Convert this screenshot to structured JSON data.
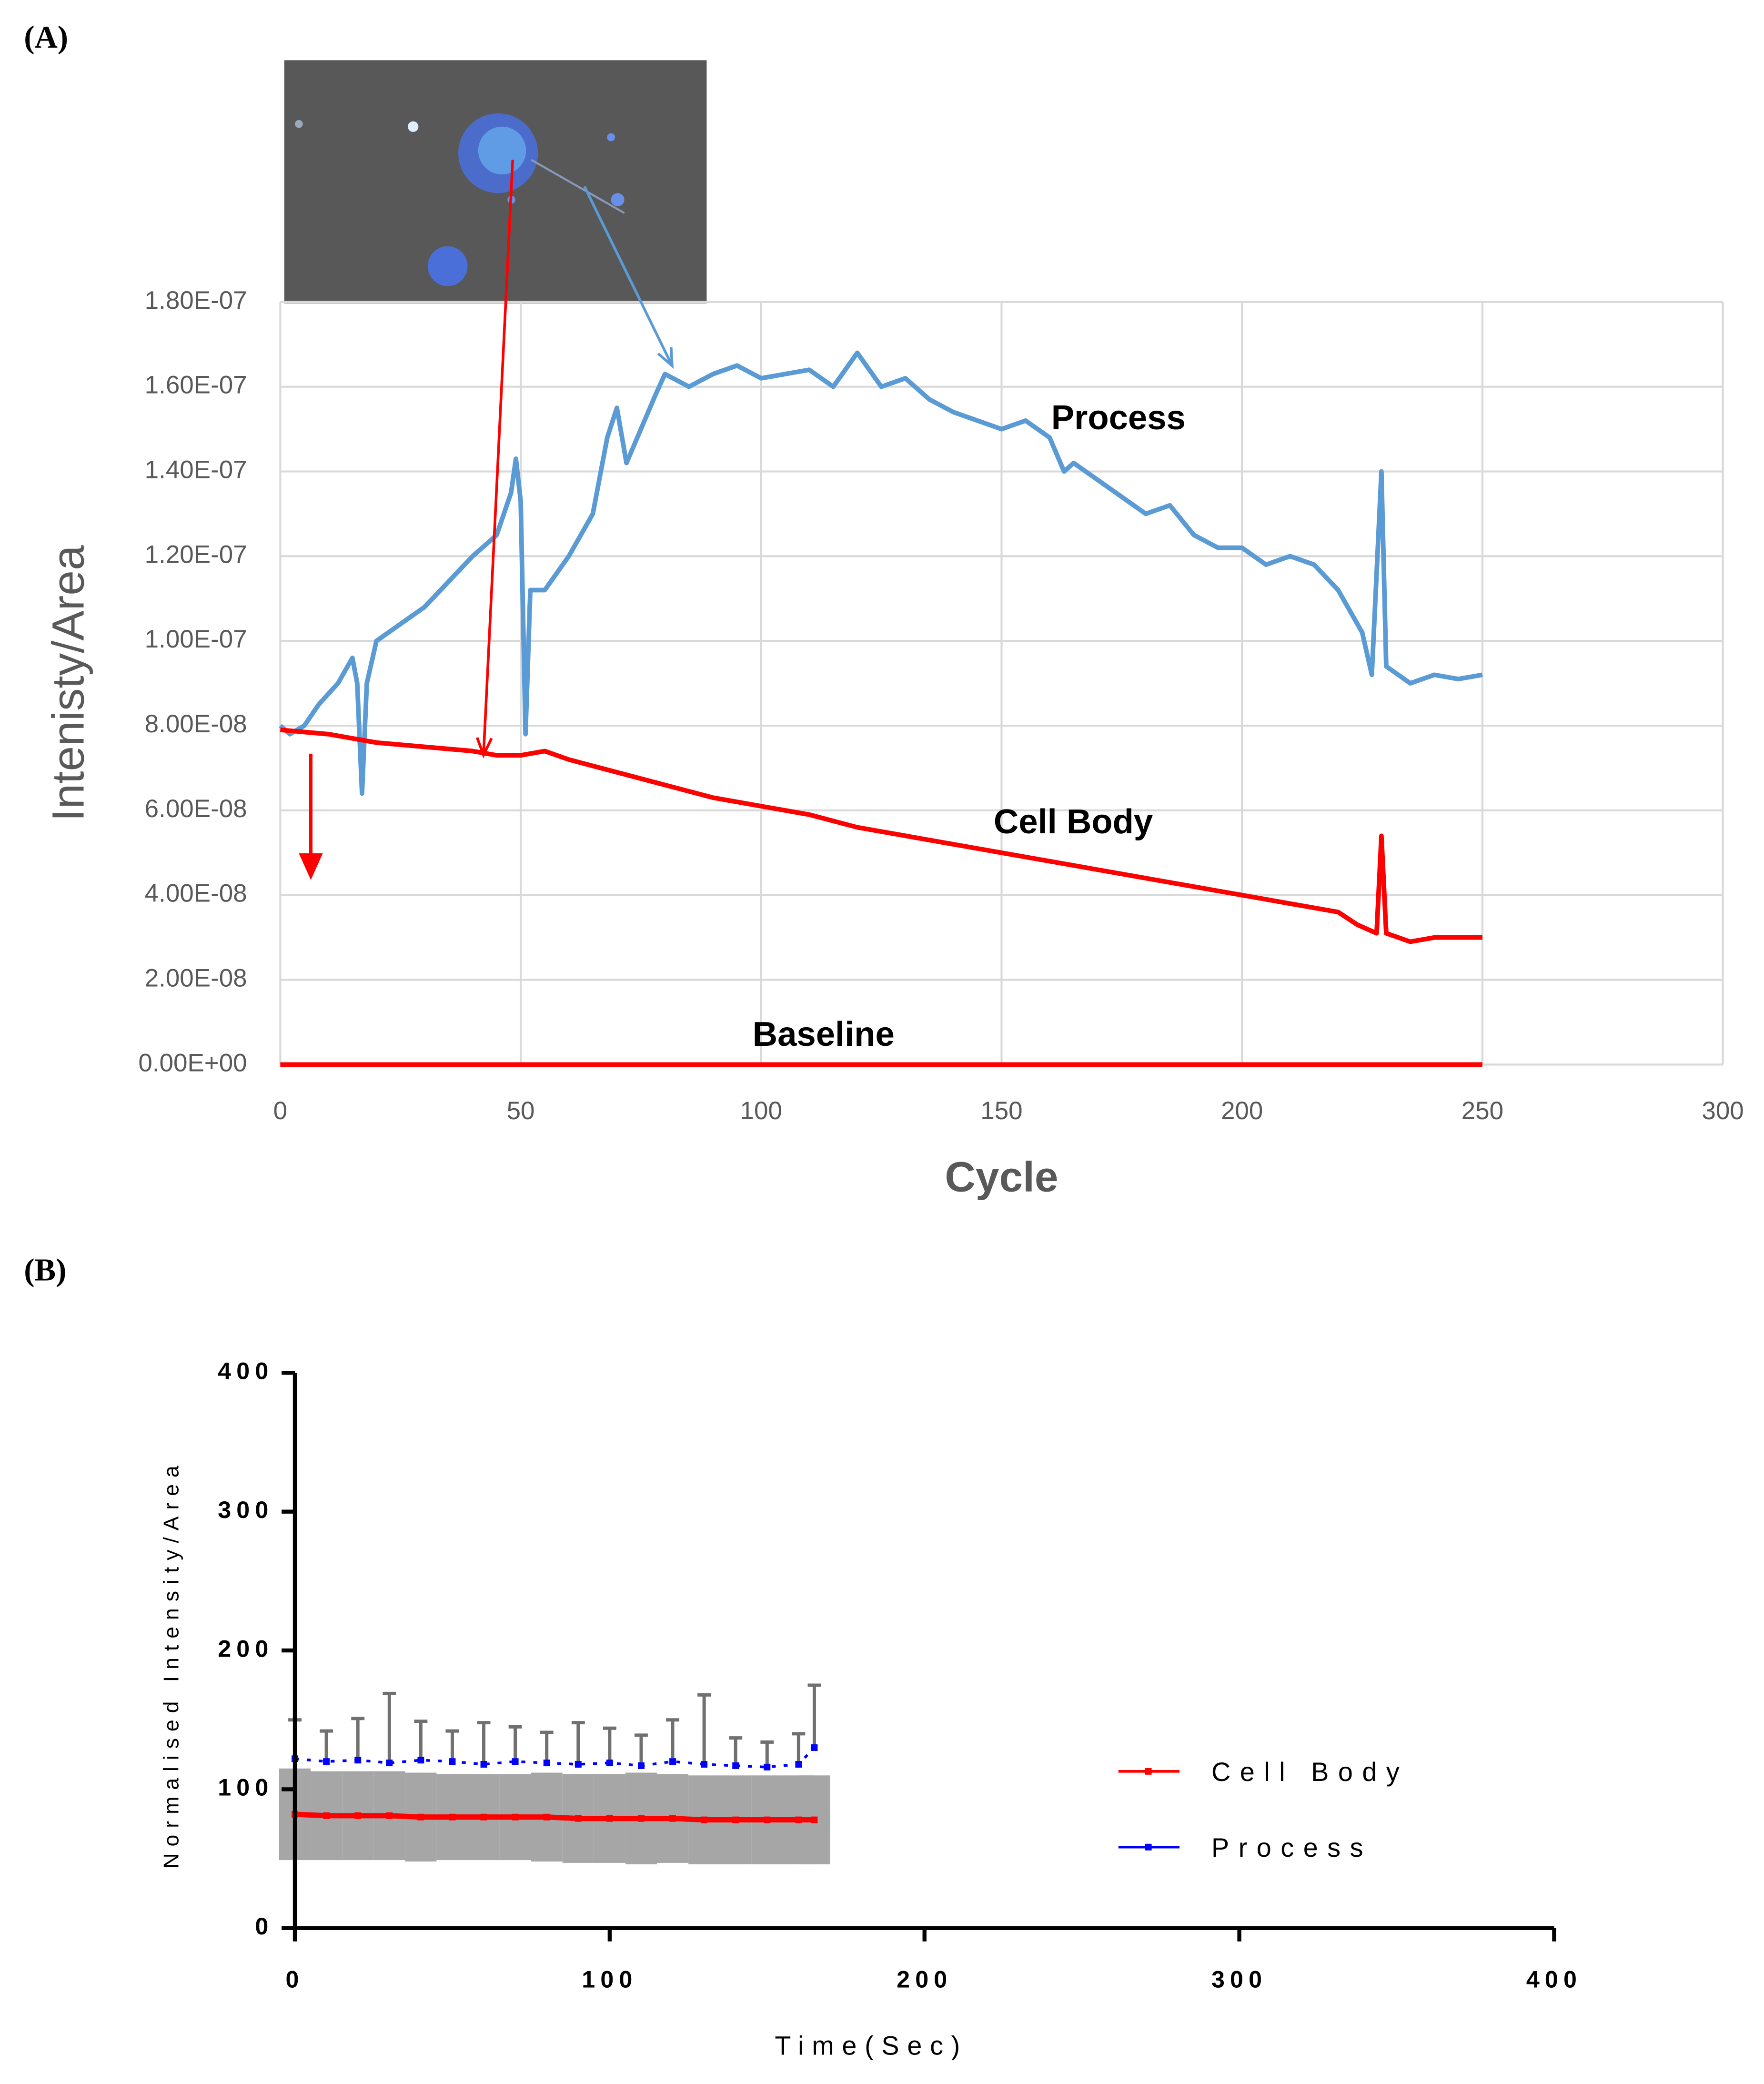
{
  "chart_data": [
    {
      "type": "line",
      "label": "(A)",
      "xlabel": "Cycle",
      "ylabel": "Intenisty/Area",
      "xlim": [
        0,
        300
      ],
      "xticks": [
        0,
        50,
        100,
        150,
        200,
        250,
        300
      ],
      "ylim": [
        0,
        1.8e-07
      ],
      "yticks": [
        {
          "value": 0,
          "label": "0.00E+00"
        },
        {
          "value": 2e-08,
          "label": "2.00E-08"
        },
        {
          "value": 4e-08,
          "label": "4.00E-08"
        },
        {
          "value": 6e-08,
          "label": "6.00E-08"
        },
        {
          "value": 8e-08,
          "label": "8.00E-08"
        },
        {
          "value": 1e-07,
          "label": "1.00E-07"
        },
        {
          "value": 1.2e-07,
          "label": "1.20E-07"
        },
        {
          "value": 1.4e-07,
          "label": "1.40E-07"
        },
        {
          "value": 1.6e-07,
          "label": "1.60E-07"
        },
        {
          "value": 1.8e-07,
          "label": "1.80E-07"
        }
      ],
      "grid": true,
      "series": [
        {
          "name": "Process",
          "color": "#5b9bd5",
          "x": [
            0,
            2,
            5,
            8,
            12,
            15,
            16,
            17,
            18,
            20,
            25,
            30,
            35,
            40,
            45,
            48,
            49,
            50,
            51,
            52,
            55,
            60,
            65,
            68,
            70,
            72,
            75,
            78,
            80,
            85,
            90,
            95,
            100,
            105,
            110,
            115,
            120,
            125,
            130,
            135,
            140,
            145,
            150,
            155,
            160,
            163,
            165,
            170,
            175,
            180,
            185,
            190,
            195,
            200,
            205,
            210,
            215,
            220,
            225,
            227,
            229,
            230,
            235,
            240,
            245,
            250
          ],
          "values": [
            8e-08,
            7.8e-08,
            8e-08,
            8.5e-08,
            9e-08,
            9.6e-08,
            9e-08,
            6.4e-08,
            9e-08,
            1e-07,
            1.04e-07,
            1.08e-07,
            1.14e-07,
            1.2e-07,
            1.25e-07,
            1.35e-07,
            1.43e-07,
            1.33e-07,
            7.8e-08,
            1.12e-07,
            1.12e-07,
            1.2e-07,
            1.3e-07,
            1.48e-07,
            1.55e-07,
            1.42e-07,
            1.5e-07,
            1.58e-07,
            1.63e-07,
            1.6e-07,
            1.63e-07,
            1.65e-07,
            1.62e-07,
            1.63e-07,
            1.64e-07,
            1.6e-07,
            1.68e-07,
            1.6e-07,
            1.62e-07,
            1.57e-07,
            1.54e-07,
            1.52e-07,
            1.5e-07,
            1.52e-07,
            1.48e-07,
            1.4e-07,
            1.42e-07,
            1.38e-07,
            1.34e-07,
            1.3e-07,
            1.32e-07,
            1.25e-07,
            1.22e-07,
            1.22e-07,
            1.18e-07,
            1.2e-07,
            1.18e-07,
            1.12e-07,
            1.02e-07,
            9.2e-08,
            1.4e-07,
            9.4e-08,
            9e-08,
            9.2e-08,
            9.1e-08,
            9.2e-08
          ]
        },
        {
          "name": "Cell Body",
          "color": "#ff0000",
          "x": [
            0,
            10,
            20,
            30,
            40,
            45,
            50,
            55,
            60,
            70,
            80,
            90,
            100,
            110,
            120,
            130,
            140,
            150,
            160,
            170,
            180,
            190,
            200,
            210,
            220,
            224,
            228,
            229,
            230,
            235,
            240,
            250
          ],
          "values": [
            7.9e-08,
            7.8e-08,
            7.6e-08,
            7.5e-08,
            7.4e-08,
            7.3e-08,
            7.3e-08,
            7.4e-08,
            7.2e-08,
            6.9e-08,
            6.6e-08,
            6.3e-08,
            6.1e-08,
            5.9e-08,
            5.6e-08,
            5.4e-08,
            5.2e-08,
            5e-08,
            4.8e-08,
            4.6e-08,
            4.4e-08,
            4.2e-08,
            4e-08,
            3.8e-08,
            3.6e-08,
            3.3e-08,
            3.1e-08,
            5.4e-08,
            3.1e-08,
            2.9e-08,
            3e-08,
            3e-08
          ]
        },
        {
          "name": "Baseline",
          "color": "#ff0000",
          "x": [
            0,
            250
          ],
          "values": [
            0,
            0
          ]
        }
      ],
      "annotations": [
        "Process",
        "Cell Body",
        "Baseline"
      ]
    },
    {
      "type": "line",
      "label": "(B)",
      "xlabel": "Time(Sec)",
      "ylabel": "Normalised Intensity/Area",
      "xlim": [
        0,
        400
      ],
      "xticks": [
        0,
        100,
        200,
        300,
        400
      ],
      "ylim": [
        0,
        400
      ],
      "yticks": [
        0,
        100,
        200,
        300,
        400
      ],
      "legend": "right",
      "x": [
        0,
        10,
        20,
        30,
        40,
        50,
        60,
        70,
        80,
        90,
        100,
        110,
        120,
        130,
        140,
        150,
        160,
        165
      ],
      "series": [
        {
          "name": "Cell Body",
          "color": "#ff0000",
          "values": [
            82,
            81,
            81,
            81,
            80,
            80,
            80,
            80,
            80,
            79,
            79,
            79,
            79,
            78,
            78,
            78,
            78,
            78
          ],
          "errors": [
            33,
            32,
            32,
            32,
            32,
            31,
            31,
            31,
            32,
            32,
            32,
            33,
            32,
            32,
            32,
            32,
            32,
            32
          ]
        },
        {
          "name": "Process",
          "color": "#0000ff",
          "values": [
            122,
            120,
            121,
            119,
            121,
            120,
            118,
            120,
            119,
            118,
            119,
            117,
            120,
            118,
            117,
            116,
            118,
            130
          ],
          "errors": [
            28,
            22,
            30,
            50,
            28,
            22,
            30,
            25,
            22,
            30,
            25,
            22,
            30,
            50,
            20,
            18,
            22,
            45
          ]
        }
      ]
    }
  ]
}
